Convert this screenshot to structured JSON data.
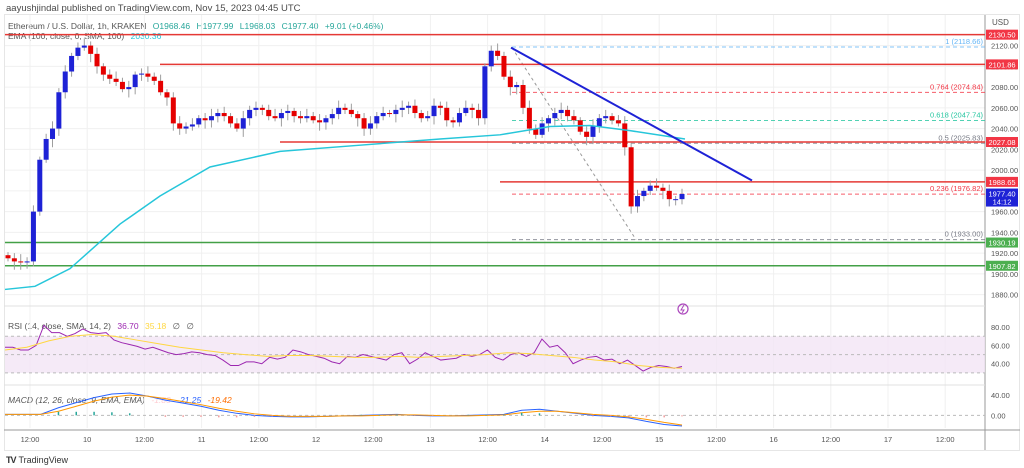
{
  "header": {
    "publisher": "aayushjindal published on TradingView.com, Nov 15, 2023 04:45 UTC",
    "symbol": "Ethereum / U.S. Dollar, 1h, KRAKEN",
    "open": "O1968.46",
    "high": "H1977.99",
    "low": "L1968.03",
    "close": "C1977.40",
    "change": "+9.01 (+0.46%)",
    "ema_label": "EMA (100, close, 0, SMA, 100)",
    "ema_value": "2030.36"
  },
  "price_axis": {
    "currency": "USD",
    "ticks": [
      "2120.00",
      "2100.00",
      "2080.00",
      "2060.00",
      "2040.00",
      "2020.00",
      "2000.00",
      "1980.00",
      "1960.00",
      "1940.00",
      "1920.00",
      "1900.00",
      "1880.00"
    ]
  },
  "price_tags": [
    {
      "value": "2130.50",
      "color": "#f23645"
    },
    {
      "value": "2101.86",
      "color": "#f23645"
    },
    {
      "value": "2027.08",
      "color": "#f23645"
    },
    {
      "value": "1988.65",
      "color": "#f23645"
    },
    {
      "value": "1977.40",
      "sub": "14:12",
      "color": "#1e22d6"
    },
    {
      "value": "1930.19",
      "color": "#4caf50"
    },
    {
      "value": "1907.82",
      "color": "#4caf50"
    }
  ],
  "fib_levels": [
    {
      "ratio": "1",
      "price": "2118.66",
      "color": "#64b5f6"
    },
    {
      "ratio": "0.764",
      "price": "2074.84",
      "color": "#f23645"
    },
    {
      "ratio": "0.618",
      "price": "2047.74",
      "color": "#26c6a0"
    },
    {
      "ratio": "0.5",
      "price": "2025.83",
      "color": "#787b86"
    },
    {
      "ratio": "0.236",
      "price": "1976.82",
      "color": "#f23645"
    },
    {
      "ratio": "0",
      "price": "1933.00",
      "color": "#787b86"
    }
  ],
  "rsi": {
    "label": "RSI (14, close, SMA, 14, 2)",
    "value": "36.70",
    "sma": "35.18",
    "extra1": "∅",
    "extra2": "∅",
    "ticks": [
      "80.00",
      "60.00",
      "40.00"
    ]
  },
  "macd": {
    "label": "MACD (12, 26, close, 9, EMA, EMA)",
    "hist": "-1.83",
    "macd": "-21.25",
    "signal": "-19.42",
    "ticks": [
      "40.00",
      "0.00"
    ]
  },
  "time_axis": {
    "labels": [
      "12:00",
      "10",
      "12:00",
      "11",
      "12:00",
      "12",
      "12:00",
      "13",
      "12:00",
      "14",
      "12:00",
      "15",
      "12:00",
      "16",
      "12:00",
      "17",
      "12:00"
    ]
  },
  "footer": {
    "brand": "TradingView"
  },
  "chart_data": {
    "type": "candlestick",
    "title": "Ethereum / U.S. Dollar, 1h, KRAKEN",
    "xlabel": "",
    "ylabel": "USD",
    "ylim": [
      1870,
      2135
    ],
    "x_range": [
      "Nov 9 09:00",
      "Nov 15 04:00"
    ],
    "last_close": 1977.4,
    "horizontal_levels": {
      "resistance": [
        2130.5,
        2101.86,
        2027.08,
        1988.65
      ],
      "support": [
        1930.19,
        1907.82
      ]
    },
    "trendline": {
      "from": {
        "time": "Nov 13 08:00",
        "price": 2118
      },
      "to": {
        "time": "Nov 15 14:00",
        "price": 1990
      },
      "color": "#1e22d6"
    },
    "fibonacci": [
      {
        "ratio": 1,
        "price": 2118.66
      },
      {
        "ratio": 0.764,
        "price": 2074.84
      },
      {
        "ratio": 0.618,
        "price": 2047.74
      },
      {
        "ratio": 0.5,
        "price": 2025.83
      },
      {
        "ratio": 0.236,
        "price": 1976.82
      },
      {
        "ratio": 0,
        "price": 1933.0
      }
    ],
    "ema100_current": 2030.36,
    "rsi": {
      "value": 36.7,
      "sma": 35.18,
      "bands": [
        30,
        70
      ],
      "ylim": [
        20,
        90
      ]
    },
    "macd": {
      "macd": -21.25,
      "signal": -19.42,
      "histogram": -1.83
    },
    "closes_sampled": [
      1915,
      1912,
      1911,
      1912,
      1960,
      2010,
      2030,
      2040,
      2075,
      2095,
      2110,
      2118,
      2120,
      2112,
      2100,
      2092,
      2088,
      2085,
      2078,
      2080,
      2092,
      2093,
      2090,
      2086,
      2075,
      2070,
      2045,
      2040,
      2042,
      2044,
      2050,
      2048,
      2052,
      2055,
      2052,
      2045,
      2040,
      2050,
      2058,
      2060,
      2058,
      2052,
      2050,
      2055,
      2057,
      2052,
      2050,
      2052,
      2048,
      2046,
      2050,
      2054,
      2060,
      2058,
      2054,
      2050,
      2040,
      2045,
      2052,
      2055,
      2054,
      2058,
      2060,
      2062,
      2055,
      2050,
      2052,
      2062,
      2060,
      2048,
      2046,
      2055,
      2060,
      2058,
      2050,
      2100,
      2115,
      2110,
      2090,
      2080,
      2082,
      2060,
      2040,
      2034,
      2045,
      2050,
      2055,
      2058,
      2052,
      2048,
      2037,
      2032,
      2042,
      2050,
      2052,
      2048,
      2045,
      2022,
      1965,
      1975,
      1980,
      1985,
      1983,
      1980,
      1972,
      1972,
      1977
    ]
  }
}
